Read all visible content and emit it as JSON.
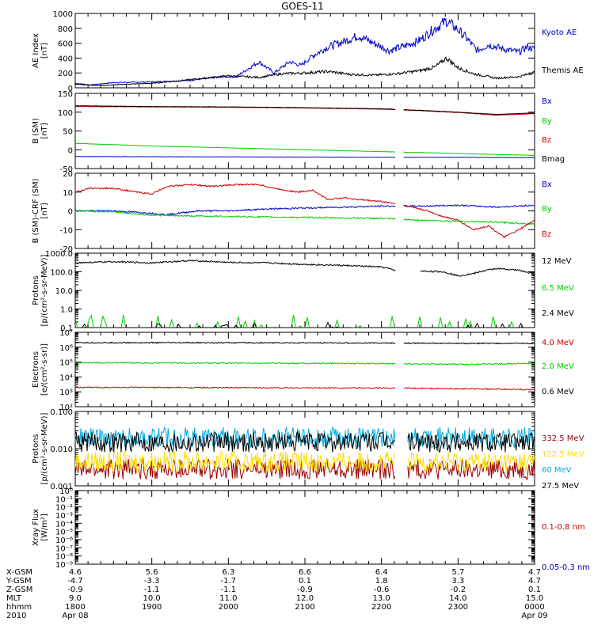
{
  "chart_data": {
    "type": "line",
    "title": "GOES-11",
    "x_ticks": [
      "1800",
      "1900",
      "2000",
      "2100",
      "2200",
      "2300",
      "0000"
    ],
    "x_range": [
      "2010-04-08 18:00",
      "2010-04-09 00:00"
    ],
    "gap": [
      "2010-04-08 22:11",
      "2010-04-08 22:14"
    ],
    "ephemeris": {
      "labels": [
        "X-GSM",
        "Y-GSM",
        "Z-GSM",
        "MLT",
        "hhmm",
        "2010"
      ],
      "columns": [
        [
          "4.6",
          "-4.7",
          "-0.9",
          "9.0",
          "1800",
          "Apr 08"
        ],
        [
          "5.6",
          "-3.3",
          "-1.1",
          "10.0",
          "1900",
          ""
        ],
        [
          "6.3",
          "-1.7",
          "-1.1",
          "11.0",
          "2000",
          ""
        ],
        [
          "6.6",
          "0.1",
          "-0.9",
          "12.0",
          "2100",
          ""
        ],
        [
          "6.4",
          "1.8",
          "-0.6",
          "13.0",
          "2200",
          ""
        ],
        [
          "5.7",
          "3.3",
          "-0.2",
          "14.0",
          "2300",
          ""
        ],
        [
          "4.7",
          "4.7",
          "0.1",
          "15.0",
          "0000",
          "Apr 09"
        ]
      ]
    },
    "panels": [
      {
        "id": "ae",
        "ylabel": [
          "AE Index",
          "[nT]"
        ],
        "scale": "linear",
        "ylim": [
          0,
          1000
        ],
        "ticks": [
          "0",
          "200",
          "400",
          "600",
          "800",
          "1000"
        ],
        "tick_values": [
          0,
          200,
          400,
          600,
          800,
          1000
        ],
        "series": [
          {
            "name": "Kyoto AE",
            "color": "#0000cc",
            "x": [
              0,
              0.2,
              0.5,
              1,
              1.5,
              1.9,
              2.1,
              2.4,
              2.6,
              2.8,
              2.95,
              3.1,
              3.3,
              3.5,
              3.7,
              3.9,
              4.1,
              4.3,
              4.5,
              4.7,
              4.85,
              5.0,
              5.1,
              5.25,
              5.4,
              5.6,
              5.8,
              5.9,
              6.0
            ],
            "y": [
              60,
              40,
              70,
              80,
              100,
              150,
              150,
              350,
              200,
              350,
              300,
              430,
              550,
              620,
              700,
              600,
              500,
              560,
              640,
              800,
              900,
              780,
              680,
              500,
              580,
              520,
              480,
              550,
              520
            ]
          },
          {
            "name": "Themis AE",
            "color": "#000000",
            "x": [
              0,
              0.3,
              0.7,
              1,
              1.5,
              2,
              2.4,
              2.7,
              3,
              3.3,
              3.6,
              3.9,
              4.2,
              4.5,
              4.7,
              4.85,
              5.0,
              5.2,
              5.5,
              5.8,
              6.0
            ],
            "y": [
              50,
              30,
              50,
              60,
              110,
              160,
              140,
              190,
              200,
              220,
              180,
              170,
              190,
              230,
              280,
              400,
              270,
              190,
              130,
              150,
              210
            ]
          }
        ]
      },
      {
        "id": "b_sm",
        "ylabel": [
          "B (SM)",
          "[nT]"
        ],
        "scale": "linear",
        "ylim": [
          -50,
          150
        ],
        "ticks": [
          "-50",
          "0",
          "50",
          "100",
          "150"
        ],
        "tick_values": [
          -50,
          0,
          50,
          100,
          150
        ],
        "series": [
          {
            "name": "Bx",
            "color": "#0000cc",
            "x": [
              0,
              1,
              2,
              3,
              4,
              5,
              6
            ],
            "y": [
              -18,
              -18.5,
              -19,
              -19.5,
              -20,
              -20,
              -21
            ]
          },
          {
            "name": "By",
            "color": "#00cc00",
            "x": [
              0,
              1,
              2,
              3,
              4,
              5,
              6
            ],
            "y": [
              17,
              10,
              5,
              0,
              -5,
              -10,
              -15
            ]
          },
          {
            "name": "Bz",
            "color": "#cc0000",
            "x": [
              0,
              1,
              2,
              3,
              4,
              4.5,
              5,
              5.5,
              6
            ],
            "y": [
              115,
              114,
              113,
              111,
              108,
              104,
              99,
              92,
              96
            ]
          },
          {
            "name": "Bmag",
            "color": "#000000",
            "x": [
              0,
              1,
              2,
              3,
              4,
              4.5,
              5,
              5.5,
              6
            ],
            "y": [
              117,
              115,
              114,
              112,
              109,
              105,
              100,
              94,
              98
            ]
          }
        ]
      },
      {
        "id": "b_dev",
        "ylabel": [
          "B (SM)-CRF (SM)",
          "[nT]"
        ],
        "scale": "linear",
        "ylim": [
          -20,
          20
        ],
        "ticks": [
          "-20",
          "-10",
          "0",
          "10",
          "20"
        ],
        "tick_values": [
          -20,
          -10,
          0,
          10,
          20
        ],
        "series": [
          {
            "name": "Bx",
            "color": "#0000cc",
            "x": [
              0,
              0.5,
              0.9,
              1.2,
              1.6,
              2,
              2.5,
              3,
              3.5,
              4,
              4.5,
              5,
              5.5,
              6
            ],
            "y": [
              0,
              0,
              -1,
              -2,
              0,
              0,
              1,
              1.5,
              2,
              2.5,
              2.5,
              3,
              2,
              3
            ]
          },
          {
            "name": "By",
            "color": "#00cc00",
            "x": [
              0,
              0.5,
              0.9,
              1.2,
              2,
              3,
              4,
              4.5,
              5,
              5.5,
              6
            ],
            "y": [
              0,
              -0.5,
              -2,
              -2.5,
              -3,
              -3.5,
              -4,
              -5,
              -5.5,
              -6,
              -7
            ]
          },
          {
            "name": "Bz",
            "color": "#cc0000",
            "x": [
              0,
              0.2,
              0.5,
              0.8,
              1,
              1.2,
              1.5,
              1.8,
              2.1,
              2.4,
              2.6,
              2.9,
              3.1,
              3.3,
              3.5,
              3.7,
              4,
              4.3,
              4.6,
              4.8,
              5,
              5.2,
              5.4,
              5.6,
              5.8,
              6
            ],
            "y": [
              10,
              12,
              12,
              10,
              9,
              13,
              14,
              13,
              14,
              14,
              12,
              10,
              11,
              6,
              7,
              6,
              5,
              3,
              0,
              -3,
              -5,
              -10,
              -8,
              -14,
              -10,
              -5
            ]
          }
        ]
      },
      {
        "id": "protons",
        "ylabel": [
          "Protons",
          "[p/(cm²-s-sr-MeV)]"
        ],
        "scale": "log",
        "ylim": [
          0.1,
          1000
        ],
        "ticks": [
          "0.1",
          "1.0",
          "10.0",
          "100.0",
          "1000.0"
        ],
        "tick_values": [
          0.1,
          1,
          10,
          100,
          1000
        ],
        "series": [
          {
            "name": "12 MeV",
            "color": "#000000",
            "x": [
              0,
              0.5,
              1,
              1.5,
              2,
              2.5,
              3,
              3.5,
              4,
              4.18,
              4.25,
              4.5,
              4.8,
              5.0,
              5.2,
              5.5,
              5.8,
              6
            ],
            "y": [
              300,
              350,
              300,
              400,
              320,
              300,
              250,
              220,
              180,
              120,
              null,
              110,
              100,
              60,
              80,
              150,
              120,
              70
            ]
          },
          {
            "name": "6.5 MeV",
            "color": "#00cc00",
            "noise": "spiky",
            "baseline": 0.1,
            "peak": 0.5
          },
          {
            "name": "2.4 MeV",
            "color": "#000000",
            "noise": "spiky",
            "baseline": 0.1,
            "peak": 0.2
          }
        ]
      },
      {
        "id": "electrons",
        "ylabel": [
          "Electrons",
          "[e/(cm²-s-sr)]"
        ],
        "scale": "log",
        "ylim": [
          100,
          10000000
        ],
        "ticks": [
          "10²",
          "10³",
          "10⁴",
          "10⁵",
          "10⁶",
          "10⁷"
        ],
        "tick_values": [
          100,
          1000,
          10000,
          100000,
          1000000,
          10000000
        ],
        "series": [
          {
            "name": "4.0 MeV",
            "color": "#cc0000",
            "x": [
              0,
              2,
              4,
              5,
              6
            ],
            "y": [
              2000,
              1900,
              1800,
              1600,
              1400
            ]
          },
          {
            "name": "2.0 MeV",
            "color": "#00cc00",
            "x": [
              0,
              2,
              4,
              5,
              6
            ],
            "y": [
              90000,
              85000,
              80000,
              70000,
              80000
            ]
          },
          {
            "name": "0.6 MeV",
            "color": "#000000",
            "x": [
              0,
              2,
              4,
              5,
              6
            ],
            "y": [
              2000000,
              2000000,
              1900000,
              1800000,
              1800000
            ]
          }
        ]
      },
      {
        "id": "hi_protons",
        "ylabel": [
          "Protons",
          "[p/(cm²-s-sr-MeV)]"
        ],
        "scale": "log",
        "ylim": [
          0.001,
          0.1
        ],
        "ticks": [
          "0.001",
          "0.010",
          "0.100"
        ],
        "tick_values": [
          0.001,
          0.01,
          0.1
        ],
        "series": [
          {
            "name": "332.5 MeV",
            "color": "#990000",
            "noise": "band",
            "center": 0.0028
          },
          {
            "name": "122.5 MeV",
            "color": "#ffdd00",
            "noise": "band",
            "center": 0.0045
          },
          {
            "name": "60 MeV",
            "color": "#00aadd",
            "noise": "band",
            "center": 0.02
          },
          {
            "name": "27.5 MeV",
            "color": "#000000",
            "noise": "band",
            "center": 0.015
          }
        ]
      },
      {
        "id": "xray",
        "ylabel": [
          "Xray Flux",
          "[W/m²]"
        ],
        "scale": "log",
        "ylim": [
          1e-09,
          1
        ],
        "ticks": [
          "10⁻⁹",
          "10⁻⁸",
          "10⁻⁷",
          "10⁻⁶",
          "10⁻⁵",
          "10⁻⁴",
          "10⁻³",
          "10⁻²",
          "10⁻¹",
          "10⁰"
        ],
        "tick_values": [
          1e-09,
          1e-08,
          1e-07,
          1e-06,
          1e-05,
          0.0001,
          0.001,
          0.01,
          0.1,
          1
        ],
        "series": [
          {
            "name": "0.1-0.8 nm",
            "color": "#cc0000",
            "x": [],
            "y": []
          },
          {
            "name": "0.05-0.3 nm",
            "color": "#0000cc",
            "x": [],
            "y": []
          }
        ]
      }
    ]
  }
}
